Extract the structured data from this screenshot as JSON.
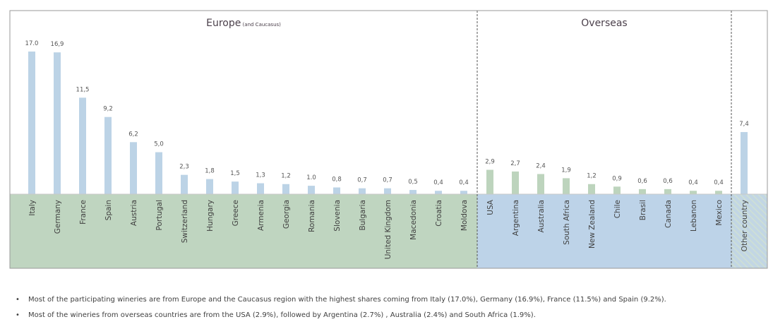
{
  "chart_data": {
    "type": "bar",
    "title": "",
    "unit": "%",
    "groups": [
      {
        "name": "Europe",
        "subtitle": "(and Caucasus)",
        "bar_color": "#bcd3e6",
        "band_color": "#bfd5c0",
        "categories": [
          "Italy",
          "Germany",
          "France",
          "Spain",
          "Austria",
          "Portugal",
          "Switzerland",
          "Hungary",
          "Greece",
          "Armenia",
          "Georgia",
          "Romania",
          "Slovenia",
          "Bulgaria",
          "United Kingdom",
          "Macedonia",
          "Croatia",
          "Moldova"
        ],
        "values": [
          17.0,
          16.9,
          11.5,
          9.2,
          6.2,
          5.0,
          2.3,
          1.8,
          1.5,
          1.3,
          1.2,
          1.0,
          0.8,
          0.7,
          0.7,
          0.5,
          0.4,
          0.4
        ],
        "labels": [
          "17.0",
          "16,9",
          "11,5",
          "9,2",
          "6,2",
          "5,0",
          "2,3",
          "1,8",
          "1,5",
          "1,3",
          "1,2",
          "1.0",
          "0,8",
          "0,7",
          "0,7",
          "0,5",
          "0,4",
          "0,4"
        ]
      },
      {
        "name": "Overseas",
        "subtitle": "",
        "bar_color": "#bdd4bd",
        "band_color": "#bdd3e8",
        "categories": [
          "USA",
          "Argentina",
          "Australia",
          "South Africa",
          "New Zealand",
          "Chile",
          "Brasil",
          "Canada",
          "Lebanon",
          "Mexico"
        ],
        "values": [
          2.9,
          2.7,
          2.4,
          1.9,
          1.2,
          0.9,
          0.6,
          0.6,
          0.4,
          0.4
        ],
        "labels": [
          "2,9",
          "2,7",
          "2,4",
          "1,9",
          "1,2",
          "0,9",
          "0,6",
          "0,6",
          "0,4",
          "0,4"
        ]
      },
      {
        "name": "",
        "subtitle": "",
        "bar_color": "#bcd3e6",
        "band_color": "#c6dcd8",
        "categories": [
          "Other country"
        ],
        "values": [
          7.4
        ],
        "labels": [
          "7,4"
        ]
      }
    ],
    "ylim": [
      0,
      17
    ],
    "grid": false,
    "legend": "none"
  },
  "notes": [
    "Most of  the participating wineries are from Europe and the Caucasus region with the highest shares coming from Italy (17.0%), Germany (16.9%), France (11.5%) and Spain (9.2%).",
    "Most of the wineries from overseas countries are from the USA (2.9%), followed by Argentina (2.7%) , Australia (2.4%) and South Africa (1.9%)."
  ]
}
